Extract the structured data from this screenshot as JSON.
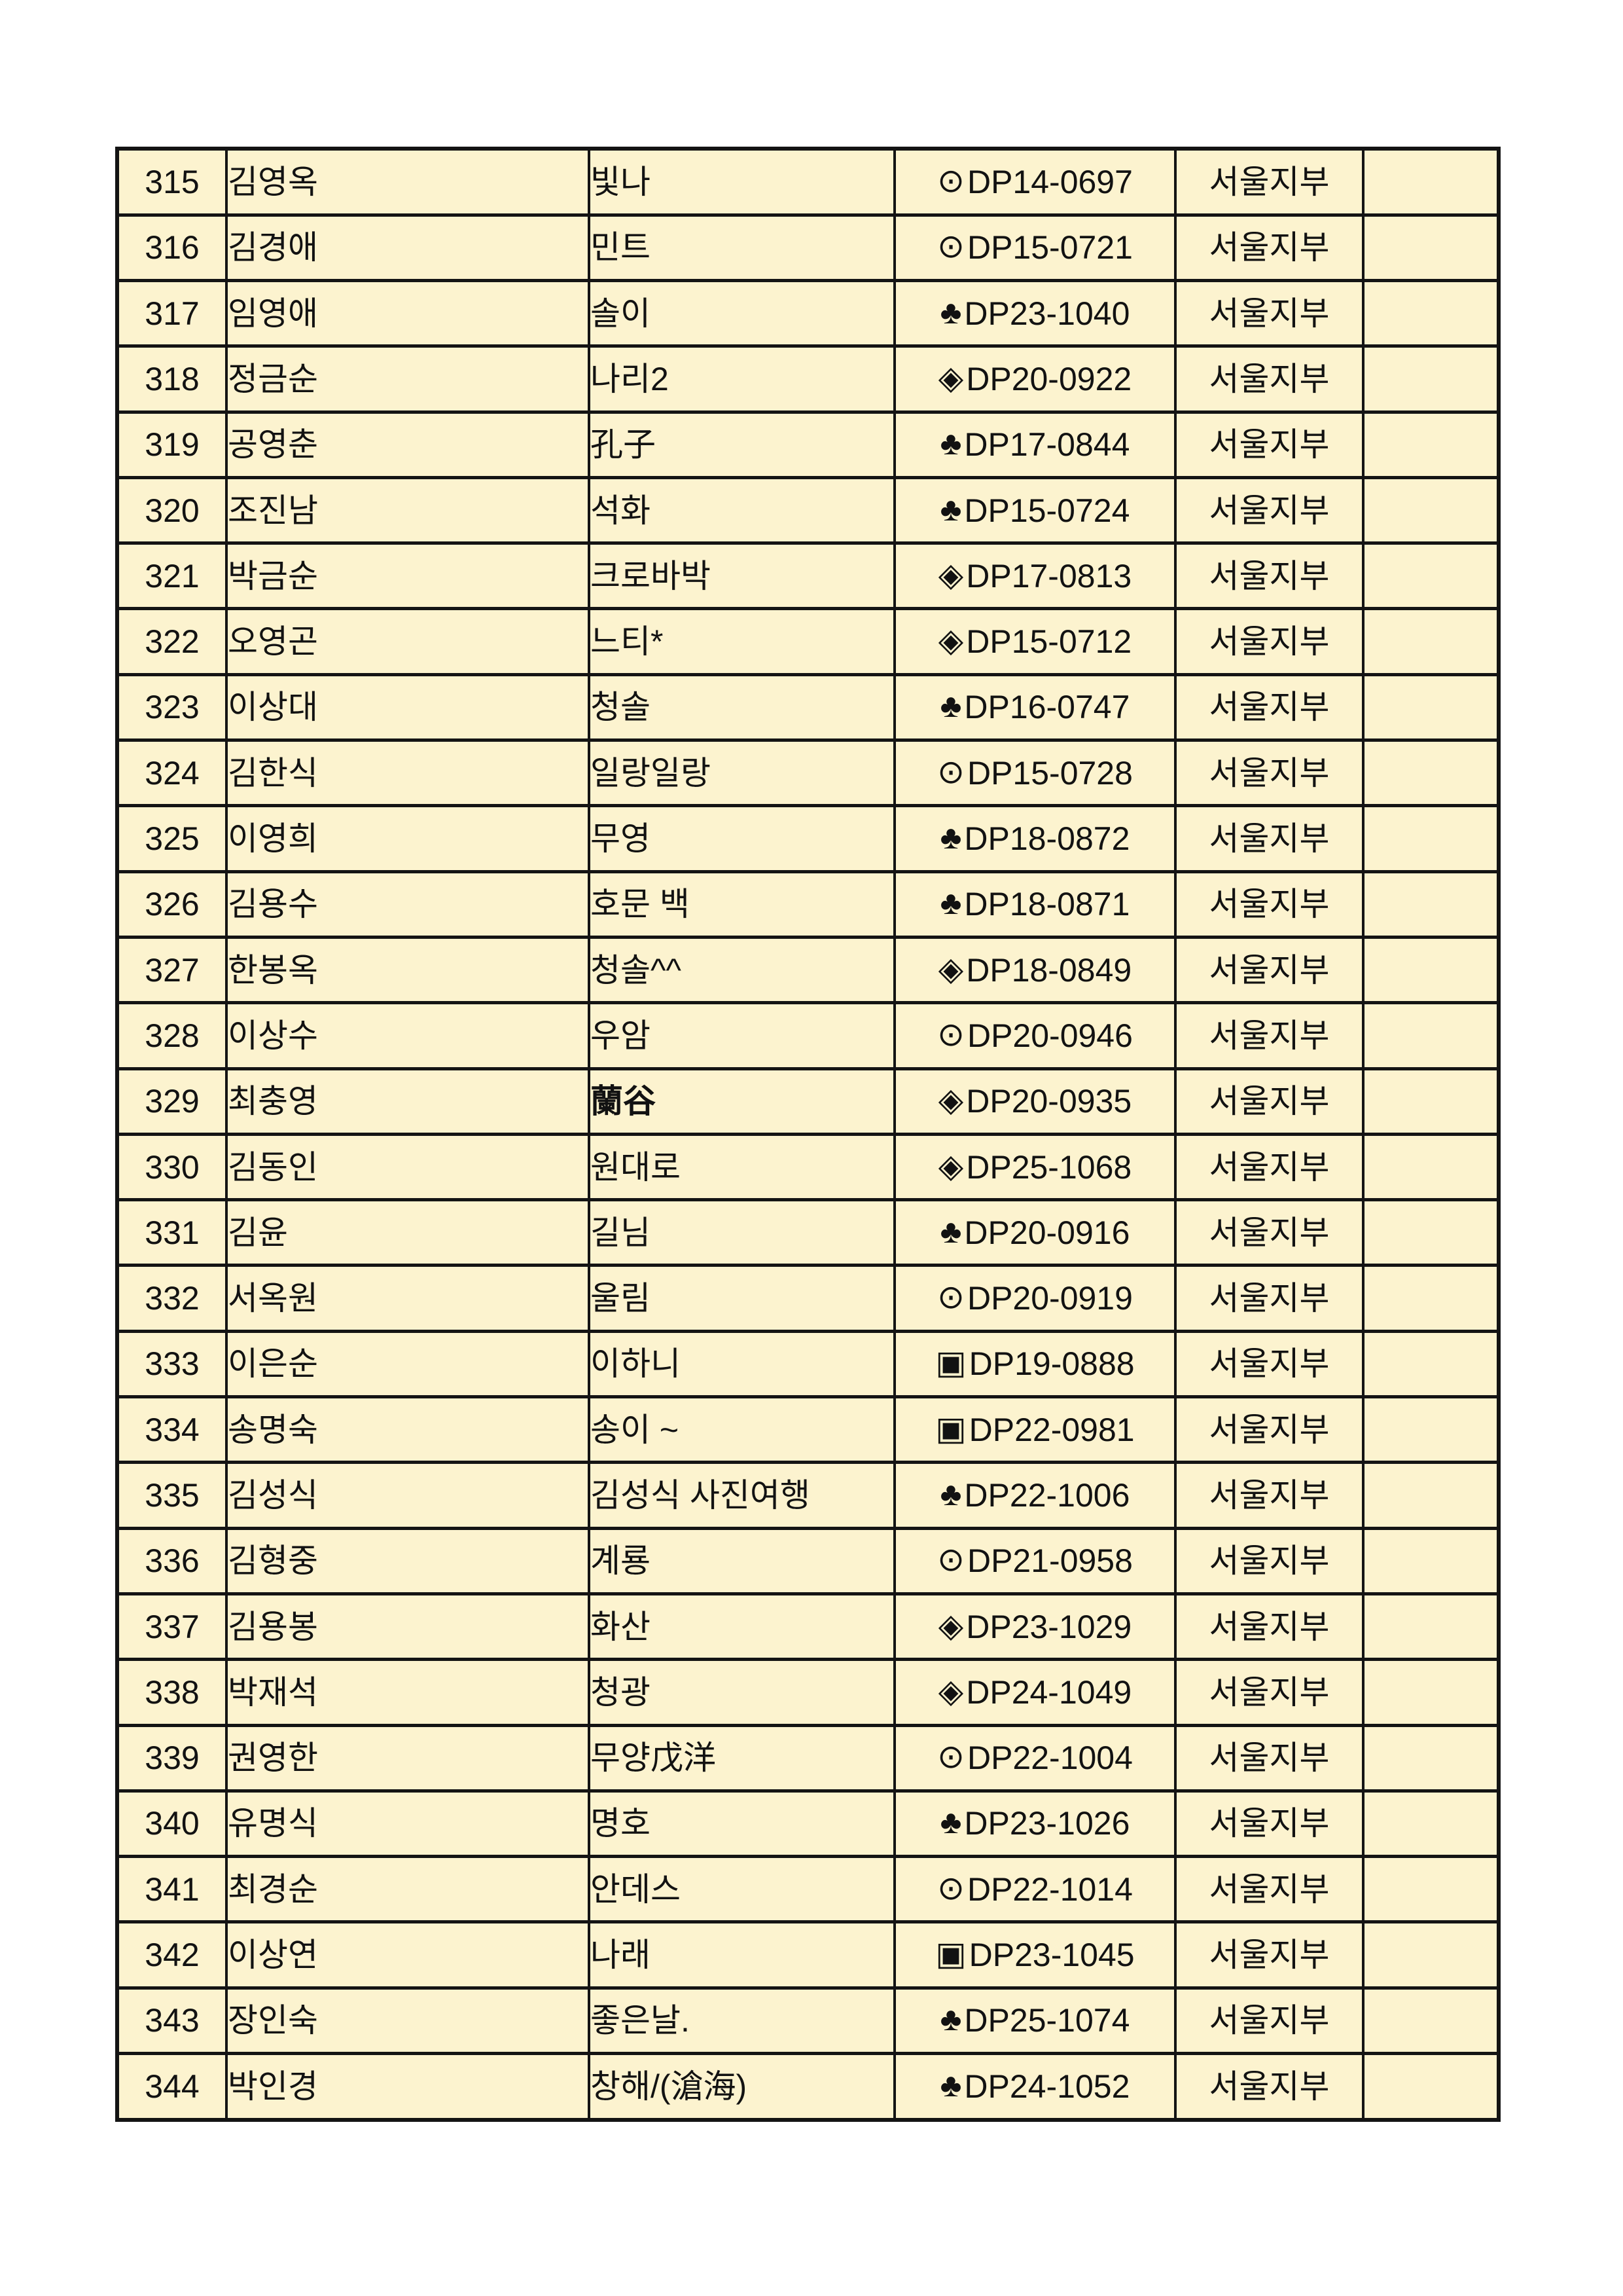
{
  "page": {
    "background_color": "#FFFFFF"
  },
  "table": {
    "colors": {
      "cell_background": "#FCF3CF",
      "border": "#141414",
      "text": "#121212"
    },
    "columns": [
      "no",
      "name",
      "nickname",
      "code",
      "branch",
      "blank"
    ],
    "rows": [
      {
        "no": "315",
        "name": "김영옥",
        "nickname": "빛나",
        "symbol": "⊙",
        "code": "DP14-0697",
        "branch": "서울지부",
        "blank": ""
      },
      {
        "no": "316",
        "name": "김경애",
        "nickname": "민트",
        "symbol": "⊙",
        "code": "DP15-0721",
        "branch": "서울지부",
        "blank": ""
      },
      {
        "no": "317",
        "name": "임영애",
        "nickname": "솔이",
        "symbol": "♣",
        "code": "DP23-1040",
        "branch": "서울지부",
        "blank": ""
      },
      {
        "no": "318",
        "name": "정금순",
        "nickname": "나리2",
        "symbol": "◈",
        "code": "DP20-0922",
        "branch": "서울지부",
        "blank": ""
      },
      {
        "no": "319",
        "name": "공영춘",
        "nickname": "孔子",
        "symbol": "♣",
        "code": "DP17-0844",
        "branch": "서울지부",
        "blank": ""
      },
      {
        "no": "320",
        "name": "조진남",
        "nickname": "석화",
        "symbol": "♣",
        "code": "DP15-0724",
        "branch": "서울지부",
        "blank": ""
      },
      {
        "no": "321",
        "name": "박금순",
        "nickname": "크로바박",
        "symbol": "◈",
        "code": "DP17-0813",
        "branch": "서울지부",
        "blank": ""
      },
      {
        "no": "322",
        "name": "오영곤",
        "nickname": "느티*",
        "symbol": "◈",
        "code": "DP15-0712",
        "branch": "서울지부",
        "blank": ""
      },
      {
        "no": "323",
        "name": "이상대",
        "nickname": "청솔",
        "symbol": "♣",
        "code": "DP16-0747",
        "branch": "서울지부",
        "blank": ""
      },
      {
        "no": "324",
        "name": "김한식",
        "nickname": "일랑일랑",
        "symbol": "⊙",
        "code": "DP15-0728",
        "branch": "서울지부",
        "blank": ""
      },
      {
        "no": "325",
        "name": "이영희",
        "nickname": "무영",
        "symbol": "♣",
        "code": "DP18-0872",
        "branch": "서울지부",
        "blank": ""
      },
      {
        "no": "326",
        "name": "김용수",
        "nickname": "호문 백",
        "symbol": "♣",
        "code": "DP18-0871",
        "branch": "서울지부",
        "blank": ""
      },
      {
        "no": "327",
        "name": "한봉옥",
        "nickname": "청솔^^",
        "symbol": "◈",
        "code": "DP18-0849",
        "branch": "서울지부",
        "blank": ""
      },
      {
        "no": "328",
        "name": "이상수",
        "nickname": "우암",
        "symbol": "⊙",
        "code": "DP20-0946",
        "branch": "서울지부",
        "blank": ""
      },
      {
        "no": "329",
        "name": "최충영",
        "nickname": "蘭谷",
        "symbol": "◈",
        "code": "DP20-0935",
        "branch": "서울지부",
        "blank": "",
        "nickname_bold": true
      },
      {
        "no": "330",
        "name": "김동인",
        "nickname": "원대로",
        "symbol": "◈",
        "code": "DP25-1068",
        "branch": "서울지부",
        "blank": ""
      },
      {
        "no": "331",
        "name": "김윤",
        "nickname": "길님",
        "symbol": "♣",
        "code": "DP20-0916",
        "branch": "서울지부",
        "blank": ""
      },
      {
        "no": "332",
        "name": "서옥원",
        "nickname": "울림",
        "symbol": "⊙",
        "code": "DP20-0919",
        "branch": "서울지부",
        "blank": ""
      },
      {
        "no": "333",
        "name": "이은순",
        "nickname": "이하니",
        "symbol": "▣",
        "code": "DP19-0888",
        "branch": "서울지부",
        "blank": ""
      },
      {
        "no": "334",
        "name": "송명숙",
        "nickname": "송이 ~",
        "symbol": "▣",
        "code": "DP22-0981",
        "branch": "서울지부",
        "blank": ""
      },
      {
        "no": "335",
        "name": "김성식",
        "nickname": "김성식 사진여행",
        "symbol": "♣",
        "code": "DP22-1006",
        "branch": "서울지부",
        "blank": ""
      },
      {
        "no": "336",
        "name": "김형중",
        "nickname": "계룡",
        "symbol": "⊙",
        "code": "DP21-0958",
        "branch": "서울지부",
        "blank": ""
      },
      {
        "no": "337",
        "name": "김용봉",
        "nickname": "화산",
        "symbol": "◈",
        "code": "DP23-1029",
        "branch": "서울지부",
        "blank": ""
      },
      {
        "no": "338",
        "name": "박재석",
        "nickname": "청광",
        "symbol": "◈",
        "code": "DP24-1049",
        "branch": "서울지부",
        "blank": ""
      },
      {
        "no": "339",
        "name": "권영한",
        "nickname": "무양戊洋",
        "symbol": "⊙",
        "code": "DP22-1004",
        "branch": "서울지부",
        "blank": ""
      },
      {
        "no": "340",
        "name": "유명식",
        "nickname": "명호",
        "symbol": "♣",
        "code": "DP23-1026",
        "branch": "서울지부",
        "blank": ""
      },
      {
        "no": "341",
        "name": "최경순",
        "nickname": "안데스",
        "symbol": "⊙",
        "code": "DP22-1014",
        "branch": "서울지부",
        "blank": ""
      },
      {
        "no": "342",
        "name": "이상연",
        "nickname": "나래",
        "symbol": "▣",
        "code": "DP23-1045",
        "branch": "서울지부",
        "blank": ""
      },
      {
        "no": "343",
        "name": "장인숙",
        "nickname": "좋은날.",
        "symbol": "♣",
        "code": "DP25-1074",
        "branch": "서울지부",
        "blank": ""
      },
      {
        "no": "344",
        "name": "박인경",
        "nickname": "창해/(滄海)",
        "symbol": "♣",
        "code": "DP24-1052",
        "branch": "서울지부",
        "blank": ""
      }
    ]
  }
}
